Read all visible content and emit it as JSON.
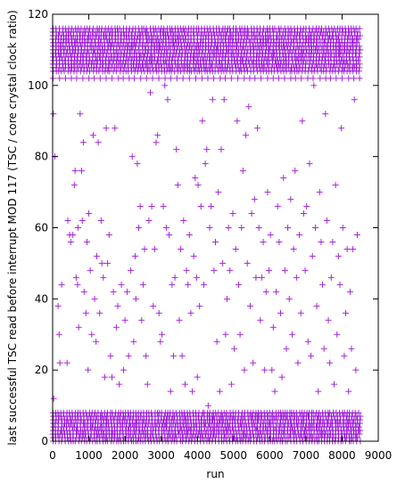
{
  "chart_data": {
    "type": "scatter",
    "xlabel": "run",
    "ylabel": "last successful TSC read before interrupt MOD 117 (TSC / core crystal clock ratio)",
    "xlim": [
      0,
      9000
    ],
    "ylim": [
      0,
      120
    ],
    "xticks": [
      0,
      1000,
      2000,
      3000,
      4000,
      5000,
      6000,
      7000,
      8000,
      9000
    ],
    "yticks": [
      0,
      20,
      40,
      60,
      80,
      100,
      120
    ],
    "grid": false,
    "legend": "none",
    "marker": "plus",
    "color": "#9400d3",
    "series": [
      {
        "x_range": [
          0,
          8500
        ],
        "band_low_y": [
          0,
          1,
          2,
          3,
          4,
          5,
          6,
          7,
          8
        ],
        "band_high_y": [
          102,
          104,
          105,
          106,
          107,
          108,
          109,
          110,
          111,
          112,
          113,
          114,
          115,
          116
        ],
        "mid_points": [
          [
            20,
            92
          ],
          [
            60,
            80
          ],
          [
            30,
            12
          ],
          [
            150,
            38
          ],
          [
            180,
            30
          ],
          [
            200,
            22
          ],
          [
            250,
            44
          ],
          [
            400,
            22
          ],
          [
            420,
            62
          ],
          [
            470,
            58
          ],
          [
            500,
            56
          ],
          [
            560,
            58
          ],
          [
            600,
            72
          ],
          [
            620,
            76
          ],
          [
            650,
            46
          ],
          [
            690,
            44
          ],
          [
            700,
            60
          ],
          [
            720,
            32
          ],
          [
            760,
            92
          ],
          [
            800,
            76
          ],
          [
            820,
            62
          ],
          [
            850,
            84
          ],
          [
            870,
            42
          ],
          [
            920,
            36
          ],
          [
            950,
            56
          ],
          [
            980,
            20
          ],
          [
            1000,
            64
          ],
          [
            1040,
            48
          ],
          [
            1080,
            30
          ],
          [
            1120,
            86
          ],
          [
            1160,
            40
          ],
          [
            1200,
            28
          ],
          [
            1220,
            52
          ],
          [
            1260,
            84
          ],
          [
            1300,
            36
          ],
          [
            1340,
            62
          ],
          [
            1360,
            50
          ],
          [
            1400,
            46
          ],
          [
            1440,
            18
          ],
          [
            1480,
            88
          ],
          [
            1520,
            50
          ],
          [
            1560,
            58
          ],
          [
            1600,
            24
          ],
          [
            1640,
            18
          ],
          [
            1680,
            42
          ],
          [
            1720,
            88
          ],
          [
            1760,
            32
          ],
          [
            1800,
            38
          ],
          [
            1840,
            16
          ],
          [
            1900,
            44
          ],
          [
            1960,
            20
          ],
          [
            2000,
            34
          ],
          [
            2060,
            42
          ],
          [
            2100,
            24
          ],
          [
            2160,
            48
          ],
          [
            2200,
            80
          ],
          [
            2240,
            28
          ],
          [
            2280,
            52
          ],
          [
            2300,
            40
          ],
          [
            2340,
            78
          ],
          [
            2380,
            60
          ],
          [
            2420,
            66
          ],
          [
            2460,
            34
          ],
          [
            2500,
            44
          ],
          [
            2540,
            54
          ],
          [
            2580,
            24
          ],
          [
            2620,
            16
          ],
          [
            2660,
            62
          ],
          [
            2700,
            98
          ],
          [
            2740,
            66
          ],
          [
            2780,
            38
          ],
          [
            2820,
            54
          ],
          [
            2860,
            84
          ],
          [
            2900,
            86
          ],
          [
            2940,
            36
          ],
          [
            2980,
            28
          ],
          [
            3020,
            30
          ],
          [
            3060,
            66
          ],
          [
            3100,
            100
          ],
          [
            3140,
            60
          ],
          [
            3180,
            96
          ],
          [
            3220,
            58
          ],
          [
            3260,
            14
          ],
          [
            3300,
            44
          ],
          [
            3340,
            24
          ],
          [
            3380,
            46
          ],
          [
            3420,
            82
          ],
          [
            3460,
            72
          ],
          [
            3500,
            34
          ],
          [
            3540,
            54
          ],
          [
            3580,
            24
          ],
          [
            3620,
            62
          ],
          [
            3660,
            16
          ],
          [
            3700,
            48
          ],
          [
            3740,
            44
          ],
          [
            3780,
            58
          ],
          [
            3820,
            36
          ],
          [
            3860,
            14
          ],
          [
            3900,
            52
          ],
          [
            3940,
            74
          ],
          [
            3980,
            46
          ],
          [
            4000,
            18
          ],
          [
            4020,
            72
          ],
          [
            4060,
            38
          ],
          [
            4100,
            66
          ],
          [
            4140,
            90
          ],
          [
            4180,
            44
          ],
          [
            4220,
            78
          ],
          [
            4260,
            82
          ],
          [
            4300,
            10
          ],
          [
            4340,
            60
          ],
          [
            4380,
            66
          ],
          [
            4420,
            96
          ],
          [
            4460,
            48
          ],
          [
            4500,
            56
          ],
          [
            4540,
            28
          ],
          [
            4580,
            70
          ],
          [
            4620,
            14
          ],
          [
            4660,
            82
          ],
          [
            4700,
            50
          ],
          [
            4740,
            96
          ],
          [
            4780,
            30
          ],
          [
            4820,
            40
          ],
          [
            4860,
            60
          ],
          [
            4900,
            48
          ],
          [
            4940,
            16
          ],
          [
            4980,
            64
          ],
          [
            5020,
            26
          ],
          [
            5060,
            54
          ],
          [
            5100,
            90
          ],
          [
            5140,
            44
          ],
          [
            5180,
            30
          ],
          [
            5220,
            60
          ],
          [
            5260,
            76
          ],
          [
            5300,
            20
          ],
          [
            5340,
            86
          ],
          [
            5380,
            50
          ],
          [
            5420,
            94
          ],
          [
            5460,
            38
          ],
          [
            5500,
            64
          ],
          [
            5540,
            22
          ],
          [
            5580,
            68
          ],
          [
            5620,
            46
          ],
          [
            5660,
            88
          ],
          [
            5700,
            60
          ],
          [
            5740,
            34
          ],
          [
            5780,
            46
          ],
          [
            5820,
            56
          ],
          [
            5860,
            20
          ],
          [
            5900,
            42
          ],
          [
            5940,
            70
          ],
          [
            5980,
            48
          ],
          [
            6020,
            58
          ],
          [
            6060,
            20
          ],
          [
            6100,
            32
          ],
          [
            6140,
            14
          ],
          [
            6180,
            42
          ],
          [
            6220,
            66
          ],
          [
            6260,
            56
          ],
          [
            6300,
            36
          ],
          [
            6340,
            18
          ],
          [
            6380,
            74
          ],
          [
            6420,
            48
          ],
          [
            6460,
            26
          ],
          [
            6500,
            60
          ],
          [
            6540,
            40
          ],
          [
            6580,
            68
          ],
          [
            6620,
            30
          ],
          [
            6660,
            54
          ],
          [
            6700,
            76
          ],
          [
            6740,
            46
          ],
          [
            6780,
            22
          ],
          [
            6820,
            58
          ],
          [
            6860,
            36
          ],
          [
            6900,
            90
          ],
          [
            6940,
            64
          ],
          [
            6980,
            48
          ],
          [
            7020,
            66
          ],
          [
            7060,
            28
          ],
          [
            7100,
            78
          ],
          [
            7140,
            24
          ],
          [
            7180,
            52
          ],
          [
            7220,
            100
          ],
          [
            7260,
            60
          ],
          [
            7300,
            38
          ],
          [
            7340,
            14
          ],
          [
            7380,
            70
          ],
          [
            7420,
            56
          ],
          [
            7460,
            44
          ],
          [
            7500,
            26
          ],
          [
            7540,
            92
          ],
          [
            7580,
            62
          ],
          [
            7620,
            34
          ],
          [
            7660,
            22
          ],
          [
            7700,
            46
          ],
          [
            7740,
            56
          ],
          [
            7780,
            16
          ],
          [
            7820,
            72
          ],
          [
            7860,
            30
          ],
          [
            7900,
            52
          ],
          [
            7940,
            44
          ],
          [
            7980,
            88
          ],
          [
            8020,
            60
          ],
          [
            8060,
            24
          ],
          [
            8100,
            36
          ],
          [
            8140,
            54
          ],
          [
            8180,
            14
          ],
          [
            8220,
            42
          ],
          [
            8260,
            26
          ],
          [
            8300,
            54
          ],
          [
            8340,
            96
          ],
          [
            8380,
            20
          ],
          [
            8420,
            58
          ]
        ]
      }
    ]
  }
}
